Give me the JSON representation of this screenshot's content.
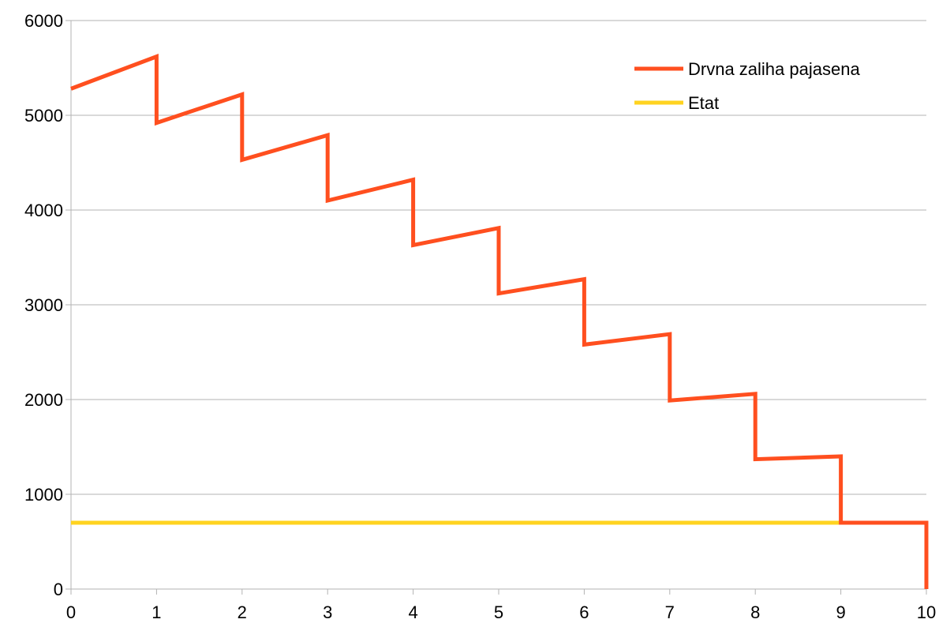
{
  "chart_data": {
    "type": "line",
    "title": "",
    "xlabel": "",
    "ylabel": "",
    "xlim": [
      0,
      10
    ],
    "ylim": [
      0,
      6000
    ],
    "x_ticks": [
      "0",
      "1",
      "2",
      "3",
      "4",
      "5",
      "6",
      "7",
      "8",
      "9",
      "10"
    ],
    "y_ticks": [
      "0",
      "1000",
      "2000",
      "3000",
      "4000",
      "5000",
      "6000"
    ],
    "grid": "horizontal",
    "legend_position": "top-right",
    "series": [
      {
        "name": "Drvna zaliha pajasena",
        "color": "#ff4f1f",
        "points": [
          [
            0,
            5280
          ],
          [
            1,
            5620
          ],
          [
            1,
            4920
          ],
          [
            2,
            5220
          ],
          [
            2,
            4530
          ],
          [
            3,
            4790
          ],
          [
            3,
            4100
          ],
          [
            4,
            4320
          ],
          [
            4,
            3630
          ],
          [
            5,
            3810
          ],
          [
            5,
            3120
          ],
          [
            6,
            3270
          ],
          [
            6,
            2580
          ],
          [
            7,
            2690
          ],
          [
            7,
            1990
          ],
          [
            8,
            2060
          ],
          [
            8,
            1370
          ],
          [
            9,
            1400
          ],
          [
            9,
            700
          ],
          [
            10,
            700
          ],
          [
            10,
            0
          ]
        ]
      },
      {
        "name": "Etat",
        "color": "#ffd320",
        "points": [
          [
            0,
            700
          ],
          [
            9,
            700
          ]
        ]
      }
    ]
  }
}
